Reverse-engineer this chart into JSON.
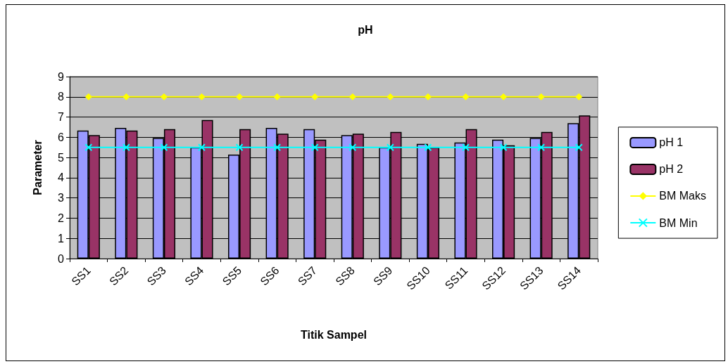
{
  "chart_data": {
    "type": "bar",
    "title": "pH",
    "xlabel": "Titik Sampel",
    "ylabel": "Parameter",
    "categories": [
      "SS1",
      "SS2",
      "SS3",
      "SS4",
      "SS5",
      "SS6",
      "SS7",
      "SS8",
      "SS9",
      "SS10",
      "SS11",
      "SS12",
      "SS13",
      "SS14"
    ],
    "series": [
      {
        "name": "pH 1",
        "color": "#9999ff",
        "values": [
          6.33,
          6.46,
          5.97,
          5.5,
          5.14,
          6.46,
          6.4,
          6.11,
          5.5,
          5.67,
          5.74,
          5.88,
          5.97,
          6.7
        ]
      },
      {
        "name": "pH 2",
        "color": "#993366",
        "values": [
          6.11,
          6.33,
          6.4,
          6.85,
          6.4,
          6.18,
          5.88,
          6.18,
          6.26,
          5.5,
          6.4,
          5.6,
          6.26,
          7.08
        ]
      },
      {
        "name": "BM Maks",
        "type": "line",
        "color": "#ffff00",
        "marker": "diamond",
        "values": [
          8,
          8,
          8,
          8,
          8,
          8,
          8,
          8,
          8,
          8,
          8,
          8,
          8,
          8
        ]
      },
      {
        "name": "BM Min",
        "type": "line",
        "color": "#00ffff",
        "marker": "cross",
        "values": [
          5.5,
          5.5,
          5.5,
          5.5,
          5.5,
          5.5,
          5.5,
          5.5,
          5.5,
          5.5,
          5.5,
          5.5,
          5.5,
          5.5
        ]
      }
    ],
    "ylim": [
      0,
      9
    ],
    "yticks": [
      0,
      1,
      2,
      3,
      4,
      5,
      6,
      7,
      8,
      9
    ],
    "grid": "y",
    "legend": "right"
  }
}
